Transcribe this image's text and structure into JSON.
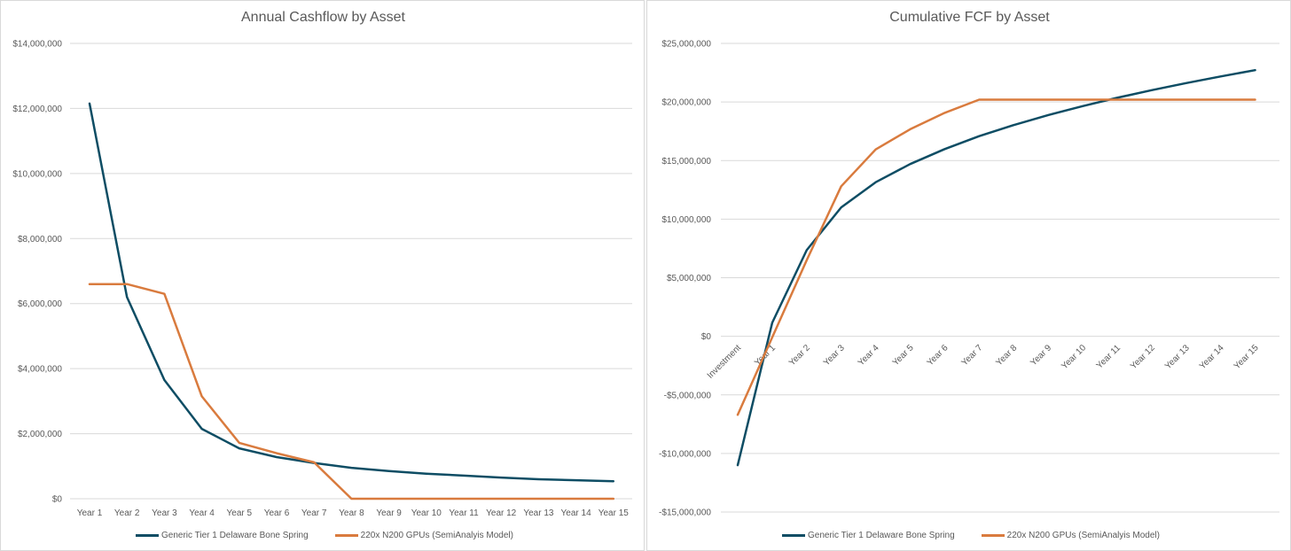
{
  "colors": {
    "series1": "#0e4d64",
    "series2": "#d97b3e",
    "grid": "#d9d9d9",
    "text": "#595959"
  },
  "chart_data": [
    {
      "type": "line",
      "title": "Annual Cashflow by Asset",
      "xlabel": "",
      "ylabel": "",
      "ylim": [
        0,
        14000000
      ],
      "yticks": [
        0,
        2000000,
        4000000,
        6000000,
        8000000,
        10000000,
        12000000,
        14000000
      ],
      "ytick_labels": [
        "$0",
        "$2,000,000",
        "$4,000,000",
        "$6,000,000",
        "$8,000,000",
        "$10,000,000",
        "$12,000,000",
        "$14,000,000"
      ],
      "categories": [
        "Year 1",
        "Year 2",
        "Year 3",
        "Year 4",
        "Year 5",
        "Year 6",
        "Year 7",
        "Year 8",
        "Year 9",
        "Year 10",
        "Year 11",
        "Year 12",
        "Year 13",
        "Year 14",
        "Year 15"
      ],
      "series": [
        {
          "name": "Generic Tier 1 Delaware Bone Spring",
          "values": [
            12150000,
            6200000,
            3650000,
            2150000,
            1550000,
            1280000,
            1100000,
            950000,
            850000,
            770000,
            710000,
            650000,
            600000,
            570000,
            540000
          ]
        },
        {
          "name": "220x N200 GPUs (SemiAnalyis Model)",
          "values": [
            6600000,
            6600000,
            6300000,
            3150000,
            1720000,
            1400000,
            1120000,
            0,
            0,
            0,
            0,
            0,
            0,
            0,
            0
          ]
        }
      ],
      "legend": "bottom",
      "grid": true
    },
    {
      "type": "line",
      "title": "Cumulative FCF by Asset",
      "xlabel": "",
      "ylabel": "",
      "ylim": [
        -15000000,
        25000000
      ],
      "yticks": [
        -15000000,
        -10000000,
        -5000000,
        0,
        5000000,
        10000000,
        15000000,
        20000000,
        25000000
      ],
      "ytick_labels": [
        "-$15,000,000",
        "-$10,000,000",
        "-$5,000,000",
        "$0",
        "$5,000,000",
        "$10,000,000",
        "$15,000,000",
        "$20,000,000",
        "$25,000,000"
      ],
      "categories": [
        "Investment",
        "Year 1",
        "Year 2",
        "Year 3",
        "Year 4",
        "Year 5",
        "Year 6",
        "Year 7",
        "Year 8",
        "Year 9",
        "Year 10",
        "Year 11",
        "Year 12",
        "Year 13",
        "Year 14",
        "Year 15"
      ],
      "series": [
        {
          "name": "Generic Tier 1 Delaware Bone Spring",
          "values": [
            -11000000,
            1150000,
            7350000,
            11000000,
            13150000,
            14700000,
            15980000,
            17080000,
            18030000,
            18880000,
            19650000,
            20360000,
            21010000,
            21610000,
            22180000,
            22720000
          ]
        },
        {
          "name": "220x N200 GPUs (SemiAnalyis Model)",
          "values": [
            -6700000,
            -100000,
            6500000,
            12800000,
            15950000,
            17670000,
            19070000,
            20200000,
            20200000,
            20200000,
            20200000,
            20200000,
            20200000,
            20200000,
            20200000,
            20200000
          ]
        }
      ],
      "legend": "bottom",
      "grid": true
    }
  ]
}
